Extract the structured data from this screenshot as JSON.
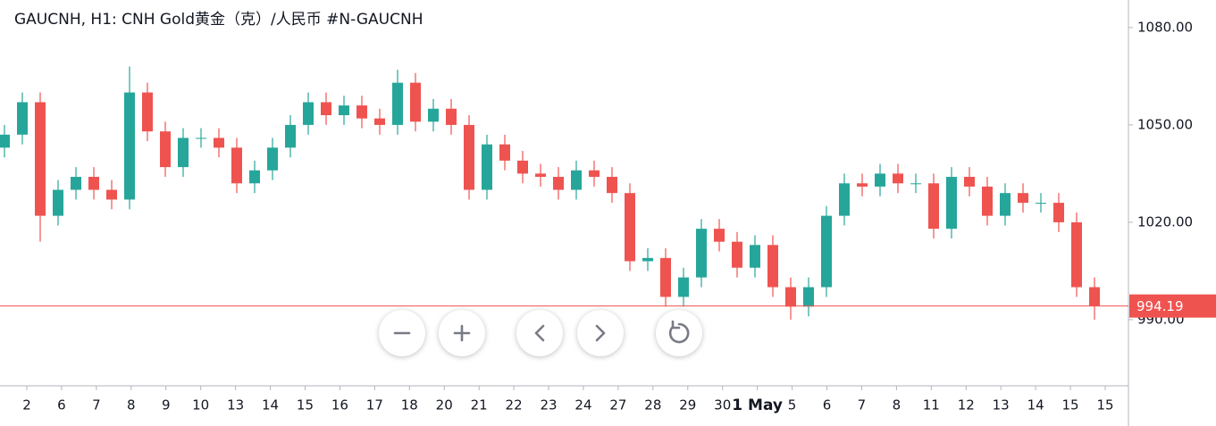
{
  "chart_data": {
    "type": "candlestick",
    "title": "GAUCNH, H1: CNH Gold黄金（克）/人民币 #N-GAUCNH",
    "x_labels": [
      "2",
      "6",
      "7",
      "8",
      "9",
      "10",
      "13",
      "14",
      "15",
      "16",
      "17",
      "18",
      "20",
      "21",
      "22",
      "23",
      "24",
      "27",
      "28",
      "29",
      "30",
      "1 May",
      "5",
      "6",
      "7",
      "8",
      "11",
      "12",
      "13",
      "14",
      "15",
      "15"
    ],
    "open": [
      1043,
      1047,
      1057,
      1022,
      1030,
      1034,
      1030,
      1027,
      1060,
      1048,
      1037,
      1046,
      1046,
      1043,
      1032,
      1036,
      1043,
      1050,
      1057,
      1053,
      1056,
      1052,
      1050,
      1063,
      1051,
      1055,
      1050,
      1030,
      1044,
      1039,
      1035,
      1034,
      1030,
      1036,
      1034,
      1029,
      1008,
      1009,
      997,
      1003,
      1018,
      1014,
      1006,
      1013,
      1000,
      994,
      1000,
      1022,
      1032,
      1031,
      1035,
      1032,
      1032,
      1018,
      1034,
      1031,
      1022,
      1029,
      1026,
      1026,
      1020,
      1000
    ],
    "high": [
      1050,
      1060,
      1060,
      1033,
      1037,
      1037,
      1033,
      1068,
      1063,
      1051,
      1049,
      1049,
      1049,
      1046,
      1039,
      1046,
      1053,
      1060,
      1060,
      1059,
      1059,
      1055,
      1067,
      1066,
      1058,
      1058,
      1053,
      1047,
      1047,
      1042,
      1038,
      1037,
      1039,
      1039,
      1037,
      1032,
      1012,
      1012,
      1006,
      1021,
      1021,
      1017,
      1016,
      1016,
      1003,
      1003,
      1025,
      1035,
      1035,
      1038,
      1038,
      1035,
      1035,
      1037,
      1037,
      1034,
      1032,
      1032,
      1029,
      1029,
      1023,
      1003
    ],
    "low": [
      1040,
      1044,
      1014,
      1019,
      1027,
      1027,
      1024,
      1024,
      1045,
      1034,
      1034,
      1043,
      1040,
      1029,
      1029,
      1033,
      1040,
      1047,
      1050,
      1050,
      1049,
      1047,
      1047,
      1048,
      1048,
      1047,
      1027,
      1027,
      1036,
      1032,
      1031,
      1027,
      1027,
      1031,
      1026,
      1005,
      1005,
      994,
      994,
      1000,
      1011,
      1003,
      1003,
      997,
      990,
      991,
      997,
      1019,
      1028,
      1028,
      1029,
      1029,
      1015,
      1015,
      1028,
      1019,
      1019,
      1023,
      1023,
      1017,
      997,
      990
    ],
    "close": [
      1047,
      1057,
      1022,
      1030,
      1034,
      1030,
      1027,
      1060,
      1048,
      1037,
      1046,
      1046,
      1043,
      1032,
      1036,
      1043,
      1050,
      1057,
      1053,
      1056,
      1052,
      1050,
      1063,
      1051,
      1055,
      1050,
      1030,
      1044,
      1039,
      1035,
      1034,
      1030,
      1036,
      1034,
      1029,
      1008,
      1009,
      997,
      1003,
      1018,
      1014,
      1006,
      1013,
      1000,
      994,
      1000,
      1022,
      1032,
      1031,
      1035,
      1032,
      1032,
      1018,
      1034,
      1031,
      1022,
      1029,
      1026,
      1026,
      1020,
      1000,
      994.19
    ],
    "up_color": "#26a69a",
    "down_color": "#ef5350",
    "last_price": 994.19,
    "ylim": [
      969.6,
      1088.5
    ],
    "yticks": [
      {
        "value": 1080,
        "label": "1080.00"
      },
      {
        "value": 1050,
        "label": "1050.00"
      },
      {
        "value": 1020,
        "label": "1020.00"
      },
      {
        "value": 990,
        "label": "990.00"
      }
    ]
  }
}
